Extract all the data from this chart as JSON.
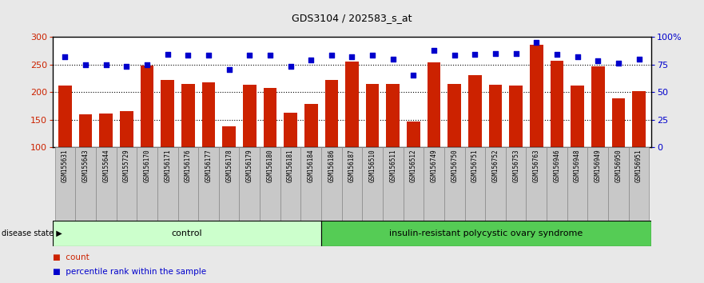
{
  "title": "GDS3104 / 202583_s_at",
  "samples": [
    "GSM155631",
    "GSM155643",
    "GSM155644",
    "GSM155729",
    "GSM156170",
    "GSM156171",
    "GSM156176",
    "GSM156177",
    "GSM156178",
    "GSM156179",
    "GSM156180",
    "GSM156181",
    "GSM156184",
    "GSM156186",
    "GSM156187",
    "GSM156510",
    "GSM156511",
    "GSM156512",
    "GSM156749",
    "GSM156750",
    "GSM156751",
    "GSM156752",
    "GSM156753",
    "GSM156763",
    "GSM156946",
    "GSM156948",
    "GSM156949",
    "GSM156950",
    "GSM156951"
  ],
  "counts": [
    211,
    160,
    161,
    165,
    248,
    222,
    215,
    217,
    138,
    213,
    208,
    163,
    178,
    222,
    255,
    215,
    215,
    147,
    253,
    214,
    230,
    213,
    211,
    285,
    257,
    211,
    247,
    188,
    201
  ],
  "percentile": [
    82,
    75,
    75,
    73,
    75,
    84,
    83,
    83,
    70,
    83,
    83,
    73,
    79,
    83,
    82,
    83,
    80,
    65,
    88,
    83,
    84,
    85,
    85,
    95,
    84,
    82,
    78,
    76,
    80
  ],
  "n_control": 13,
  "control_label": "control",
  "disease_label": "insulin-resistant polycystic ovary syndrome",
  "ylim_left": [
    100,
    300
  ],
  "ylim_right": [
    0,
    100
  ],
  "yticks_left": [
    100,
    150,
    200,
    250,
    300
  ],
  "yticks_right": [
    0,
    25,
    50,
    75,
    100
  ],
  "ytick_labels_right": [
    "0",
    "25",
    "50",
    "75",
    "100%"
  ],
  "bar_color": "#CC2200",
  "dot_color": "#0000CC",
  "bg_color": "#E8E8E8",
  "plot_bg": "#FFFFFF",
  "xtick_bg": "#C8C8C8",
  "control_bg": "#CCFFCC",
  "disease_bg": "#55CC55",
  "legend_count_color": "#CC2200",
  "legend_dot_color": "#0000CC",
  "ytick_left_color": "#CC2200",
  "ytick_right_color": "#0000CC"
}
